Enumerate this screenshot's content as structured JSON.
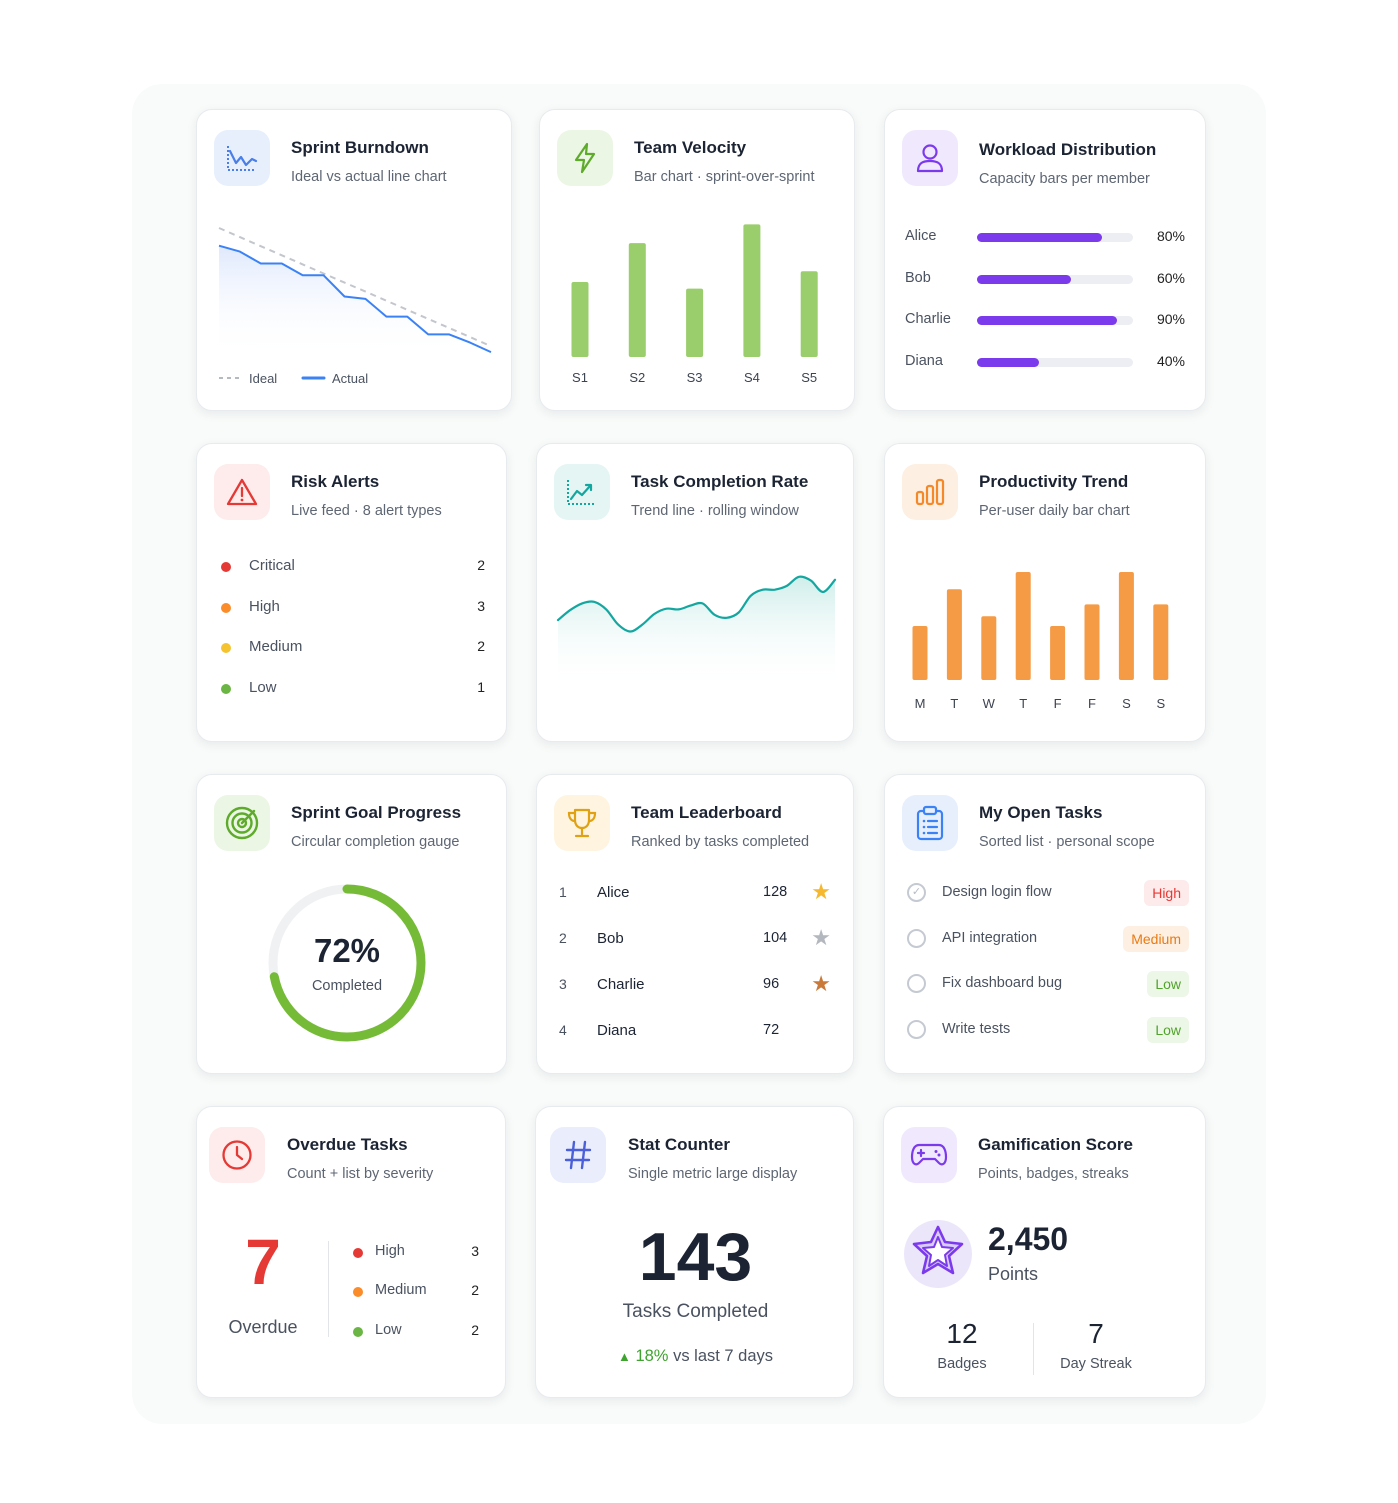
{
  "colors": {
    "accent_blue": "#3b82f6",
    "velocity_green": "#9acd6c",
    "workload_purple": "#7c3aed",
    "productivity_orange": "#f59a45",
    "trend_teal": "#14a7a0",
    "goal_green": "#76bb38",
    "overdue_red": "#e53935"
  },
  "sprint_burndown": {
    "title": "Sprint Burndown",
    "subtitle": "Ideal vs actual line chart",
    "icon": "line-chart-icon",
    "legend": [
      "Ideal",
      "Actual"
    ]
  },
  "team_velocity": {
    "title": "Team Velocity",
    "subtitle": "Bar chart · sprint-over-sprint",
    "icon": "lightning-icon"
  },
  "workload": {
    "title": "Workload Distribution",
    "subtitle": "Capacity bars per member",
    "icon": "user-icon",
    "members": [
      {
        "name": "Alice",
        "value": 80,
        "label": "80%"
      },
      {
        "name": "Bob",
        "value": 60,
        "label": "60%"
      },
      {
        "name": "Charlie",
        "value": 90,
        "label": "90%"
      },
      {
        "name": "Diana",
        "value": 40,
        "label": "40%"
      }
    ]
  },
  "risk_alerts": {
    "title": "Risk Alerts",
    "subtitle": "Live feed · 8 alert types",
    "icon": "warning-icon",
    "items": [
      {
        "label": "Critical",
        "count": "2",
        "color": "#e53935"
      },
      {
        "label": "High",
        "count": "3",
        "color": "#fb8c2a"
      },
      {
        "label": "Medium",
        "count": "2",
        "color": "#f5c330"
      },
      {
        "label": "Low",
        "count": "1",
        "color": "#6ab544"
      }
    ]
  },
  "task_completion": {
    "title": "Task Completion Rate",
    "subtitle": "Trend line · rolling window",
    "icon": "trend-chart-icon"
  },
  "productivity": {
    "title": "Productivity Trend",
    "subtitle": "Per-user daily bar chart",
    "icon": "bar-chart-icon"
  },
  "sprint_goal": {
    "title": "Sprint Goal Progress",
    "subtitle": "Circular completion gauge",
    "icon": "target-icon",
    "value": 72,
    "value_label": "72%",
    "caption": "Completed"
  },
  "leaderboard": {
    "title": "Team Leaderboard",
    "subtitle": "Ranked by tasks completed",
    "icon": "trophy-icon",
    "rows": [
      {
        "rank": "1",
        "name": "Alice",
        "count": "128",
        "star": "gold-star-icon",
        "star_color": "#f5b82e"
      },
      {
        "rank": "2",
        "name": "Bob",
        "count": "104",
        "star": "silver-star-icon",
        "star_color": "#b3b8bf"
      },
      {
        "rank": "3",
        "name": "Charlie",
        "count": "96",
        "star": "bronze-star-icon",
        "star_color": "#c97a3a"
      },
      {
        "rank": "4",
        "name": "Diana",
        "count": "72"
      }
    ]
  },
  "open_tasks": {
    "title": "My Open Tasks",
    "subtitle": "Sorted list · personal scope",
    "icon": "clipboard-icon",
    "tasks": [
      {
        "name": "Design login flow",
        "priority": "High",
        "checked": true,
        "fg": "#e53935",
        "bg": "#fdeaea"
      },
      {
        "name": "API integration",
        "priority": "Medium",
        "checked": false,
        "fg": "#ea7a12",
        "bg": "#fdf0e3"
      },
      {
        "name": "Fix dashboard bug",
        "priority": "Low",
        "checked": false,
        "fg": "#4fa32a",
        "bg": "#edf7e8"
      },
      {
        "name": "Write tests",
        "priority": "Low",
        "checked": false,
        "fg": "#4fa32a",
        "bg": "#edf7e8"
      }
    ]
  },
  "overdue": {
    "title": "Overdue Tasks",
    "subtitle": "Count + list by severity",
    "icon": "clock-icon",
    "count": "7",
    "caption": "Overdue",
    "items": [
      {
        "label": "High",
        "count": "3",
        "color": "#e53935"
      },
      {
        "label": "Medium",
        "count": "2",
        "color": "#fb8c2a"
      },
      {
        "label": "Low",
        "count": "2",
        "color": "#6ab544"
      }
    ]
  },
  "stat_counter": {
    "title": "Stat Counter",
    "subtitle": "Single metric large display",
    "icon": "hash-icon",
    "value": "143",
    "caption": "Tasks Completed",
    "delta": "18%",
    "delta_text": "vs last 7 days"
  },
  "gamification": {
    "title": "Gamification Score",
    "subtitle": "Points, badges, streaks",
    "icon": "gamepad-icon",
    "points": "2,450",
    "points_label": "Points",
    "badges": "12",
    "badges_label": "Badges",
    "streak": "7",
    "streak_label": "Day Streak"
  },
  "chart_data": [
    {
      "type": "line",
      "title": "Sprint Burndown",
      "x": [
        0,
        1,
        2,
        3,
        4,
        5,
        6,
        7,
        8,
        9,
        10,
        11,
        12,
        13
      ],
      "series": [
        {
          "name": "Ideal",
          "values": [
            100,
            92.3,
            84.6,
            76.9,
            69.2,
            61.5,
            53.8,
            46.2,
            38.5,
            30.8,
            23.1,
            15.4,
            7.7,
            0
          ]
        },
        {
          "name": "Actual",
          "values": [
            85,
            80,
            70,
            70,
            60,
            60,
            42,
            40,
            25,
            25,
            10,
            10,
            3,
            -5
          ]
        }
      ],
      "ylim": [
        -10,
        100
      ]
    },
    {
      "type": "bar",
      "title": "Team Velocity",
      "categories": [
        "S1",
        "S2",
        "S3",
        "S4",
        "S5"
      ],
      "values": [
        56,
        85,
        51,
        99,
        64
      ],
      "ylim": [
        0,
        100
      ]
    },
    {
      "type": "area",
      "title": "Task Completion Rate",
      "values": [
        42,
        55,
        64,
        66,
        56,
        36,
        27,
        36,
        50,
        57,
        56,
        61,
        64,
        49,
        45,
        52,
        74,
        82,
        82,
        87,
        99,
        94,
        79,
        95
      ],
      "ylim": [
        0,
        100
      ]
    },
    {
      "type": "bar",
      "title": "Productivity Trend",
      "categories": [
        "M",
        "T",
        "W",
        "T",
        "F",
        "F",
        "S",
        "S"
      ],
      "values": [
        50,
        84,
        59,
        100,
        50,
        70,
        100,
        70
      ],
      "ylim": [
        0,
        100
      ]
    }
  ]
}
